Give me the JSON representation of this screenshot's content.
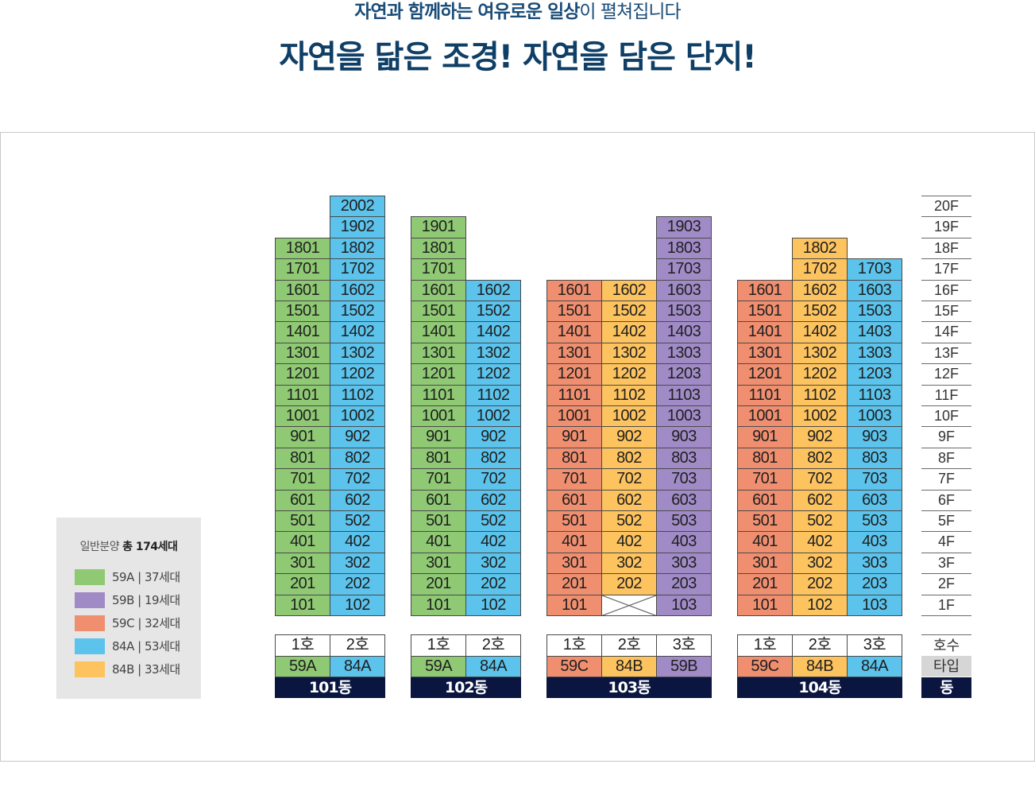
{
  "header": {
    "subtitle_bold": "자연과 함께하는 여유로운 일상",
    "subtitle_rest": "이 펼쳐집니다",
    "headline": "자연을 닮은 조경! 자연을 담은 단지!"
  },
  "colors": {
    "59A": "#8fc974",
    "59B": "#a08bc7",
    "59C": "#f08f70",
    "84A": "#5bc3ec",
    "84B": "#fdc35f"
  },
  "legend": {
    "title_prefix": "일반분양 ",
    "title_bold": "총 174세대",
    "items": [
      {
        "type": "59A",
        "text": "59A | 37세대"
      },
      {
        "type": "59B",
        "text": "59B | 19세대"
      },
      {
        "type": "59C",
        "text": "59C | 32세대"
      },
      {
        "type": "84A",
        "text": "84A | 53세대"
      },
      {
        "type": "84B",
        "text": "84B | 33세대"
      }
    ]
  },
  "buildings": [
    {
      "name": "101동",
      "lines": [
        {
          "line": "1호",
          "type": "59A",
          "floors": [
            1,
            18
          ],
          "missing": []
        },
        {
          "line": "2호",
          "type": "84A",
          "floors": [
            1,
            20
          ],
          "missing": []
        }
      ]
    },
    {
      "name": "102동",
      "lines": [
        {
          "line": "1호",
          "type": "59A",
          "floors": [
            1,
            19
          ],
          "missing": []
        },
        {
          "line": "2호",
          "type": "84A",
          "floors": [
            1,
            16
          ],
          "missing": []
        }
      ]
    },
    {
      "name": "103동",
      "lines": [
        {
          "line": "1호",
          "type": "59C",
          "floors": [
            1,
            16
          ],
          "missing": []
        },
        {
          "line": "2호",
          "type": "84B",
          "floors": [
            1,
            16
          ],
          "missing": [
            1
          ]
        },
        {
          "line": "3호",
          "type": "59B",
          "floors": [
            1,
            19
          ],
          "missing": []
        }
      ]
    },
    {
      "name": "104동",
      "lines": [
        {
          "line": "1호",
          "type": "59C",
          "floors": [
            1,
            16
          ],
          "missing": []
        },
        {
          "line": "2호",
          "type": "84B",
          "floors": [
            1,
            18
          ],
          "missing": []
        },
        {
          "line": "3호",
          "type": "84A",
          "floors": [
            1,
            17
          ],
          "missing": []
        }
      ]
    }
  ],
  "floor_labels": [
    "20F",
    "19F",
    "18F",
    "17F",
    "16F",
    "15F",
    "14F",
    "13F",
    "12F",
    "11F",
    "10F",
    "9F",
    "8F",
    "7F",
    "6F",
    "5F",
    "4F",
    "3F",
    "2F",
    "1F"
  ],
  "key_column": {
    "line": "호수",
    "type": "타입",
    "dong": "동"
  }
}
